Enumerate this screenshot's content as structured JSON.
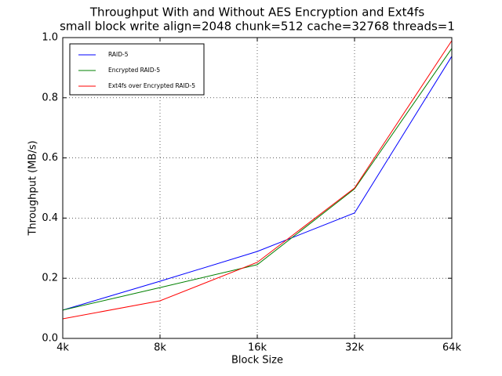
{
  "chart_data": {
    "type": "line",
    "title": "Throughput With and Without AES Encryption and Ext4fs",
    "subtitle": "small block write align=2048 chunk=512 cache=32768 threads=1",
    "x_label": "Block Size",
    "y_label": "Throughput (MB/s)",
    "categories": [
      "4k",
      "8k",
      "16k",
      "32k",
      "64k"
    ],
    "series": [
      {
        "name": "RAID-5",
        "color": "#0000ff",
        "values": [
          0.094,
          0.19,
          0.289,
          0.417,
          0.938
        ]
      },
      {
        "name": "Encrypted RAID-5",
        "color": "#008000",
        "values": [
          0.094,
          0.169,
          0.245,
          0.497,
          0.964
        ]
      },
      {
        "name": "Ext4fs over Encrypted RAID-5",
        "color": "#ff0000",
        "values": [
          0.065,
          0.125,
          0.253,
          0.5,
          0.99
        ]
      }
    ],
    "ylim": [
      0,
      1
    ],
    "yticks": [
      {
        "value": 0,
        "label": "0.0"
      },
      {
        "value": 0.2,
        "label": "0.2"
      },
      {
        "value": 0.4,
        "label": "0.4"
      },
      {
        "value": 0.6,
        "label": "0.6"
      },
      {
        "value": 0.8,
        "label": "0.8"
      },
      {
        "value": 1,
        "label": "1.0"
      }
    ],
    "grid": true,
    "legend": "upper left"
  }
}
